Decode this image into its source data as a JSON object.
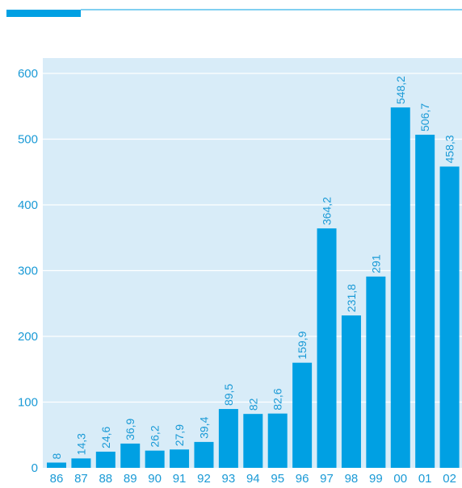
{
  "colors": {
    "accent": "#00a0e3",
    "plot_background": "#d8ecf8",
    "text": "#1a9ad6",
    "header_rule": "#00a0e3"
  },
  "chart_data": {
    "type": "bar",
    "categories": [
      "86",
      "87",
      "88",
      "89",
      "90",
      "91",
      "92",
      "93",
      "94",
      "95",
      "96",
      "97",
      "98",
      "99",
      "00",
      "01",
      "02"
    ],
    "values": [
      8,
      14.3,
      24.6,
      36.9,
      26.2,
      27.9,
      39.4,
      89.5,
      82,
      82.6,
      159.9,
      364.2,
      231.8,
      291,
      548.2,
      506.7,
      458.3
    ],
    "data_labels": [
      "8",
      "14,3",
      "24,6",
      "36,9",
      "26,2",
      "27,9",
      "39,4",
      "89,5",
      "82",
      "82,6",
      "159,9",
      "364,2",
      "231,8",
      "291",
      "548,2",
      "506,7",
      "458,3"
    ],
    "title": "",
    "xlabel": "",
    "ylabel": "",
    "ylim": [
      0,
      600
    ],
    "yticks": [
      "0",
      "100",
      "200",
      "300",
      "400",
      "500",
      "600"
    ],
    "grid": true,
    "legend": "none"
  }
}
